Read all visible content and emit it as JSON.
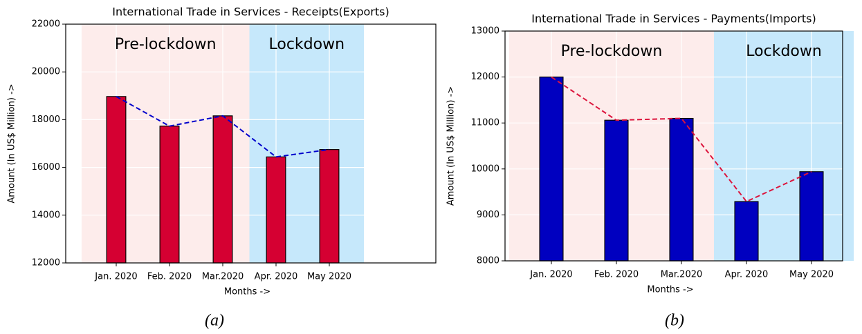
{
  "chart_data": [
    {
      "type": "bar",
      "title": "International Trade in Services - Receipts(Exports)",
      "xlabel": "Months ->",
      "ylabel": "Amount (In US$ Million) ->",
      "categories": [
        "Jan. 2020",
        "Feb. 2020",
        "Mar.2020",
        "Apr. 2020",
        "May 2020"
      ],
      "values": [
        18970,
        17730,
        18160,
        16440,
        16750
      ],
      "color": "#d50032",
      "line_color": "#0000cc",
      "ylim": [
        12000,
        22000
      ],
      "yticks": [
        12000,
        14000,
        16000,
        18000,
        20000,
        22000
      ],
      "grid": true,
      "annotations": [
        "Pre-lockdown",
        "Lockdown"
      ],
      "region_colors": [
        "#fdeceb",
        "#c6e8fb"
      ],
      "caption": "(a)"
    },
    {
      "type": "bar",
      "title": "International Trade in Services - Payments(Imports)",
      "xlabel": "Months ->",
      "ylabel": "Amount (In US$ Million) ->",
      "categories": [
        "Jan. 2020",
        "Feb. 2020",
        "Mar.2020",
        "Apr. 2020",
        "May 2020"
      ],
      "values": [
        12000,
        11060,
        11100,
        9290,
        9940
      ],
      "color": "#0000c0",
      "line_color": "#dc143c",
      "ylim": [
        8000,
        13000
      ],
      "yticks": [
        8000,
        9000,
        10000,
        11000,
        12000,
        13000
      ],
      "grid": true,
      "annotations": [
        "Pre-lockdown",
        "Lockdown"
      ],
      "region_colors": [
        "#fdeceb",
        "#c6e8fb"
      ],
      "caption": "(b)"
    }
  ]
}
